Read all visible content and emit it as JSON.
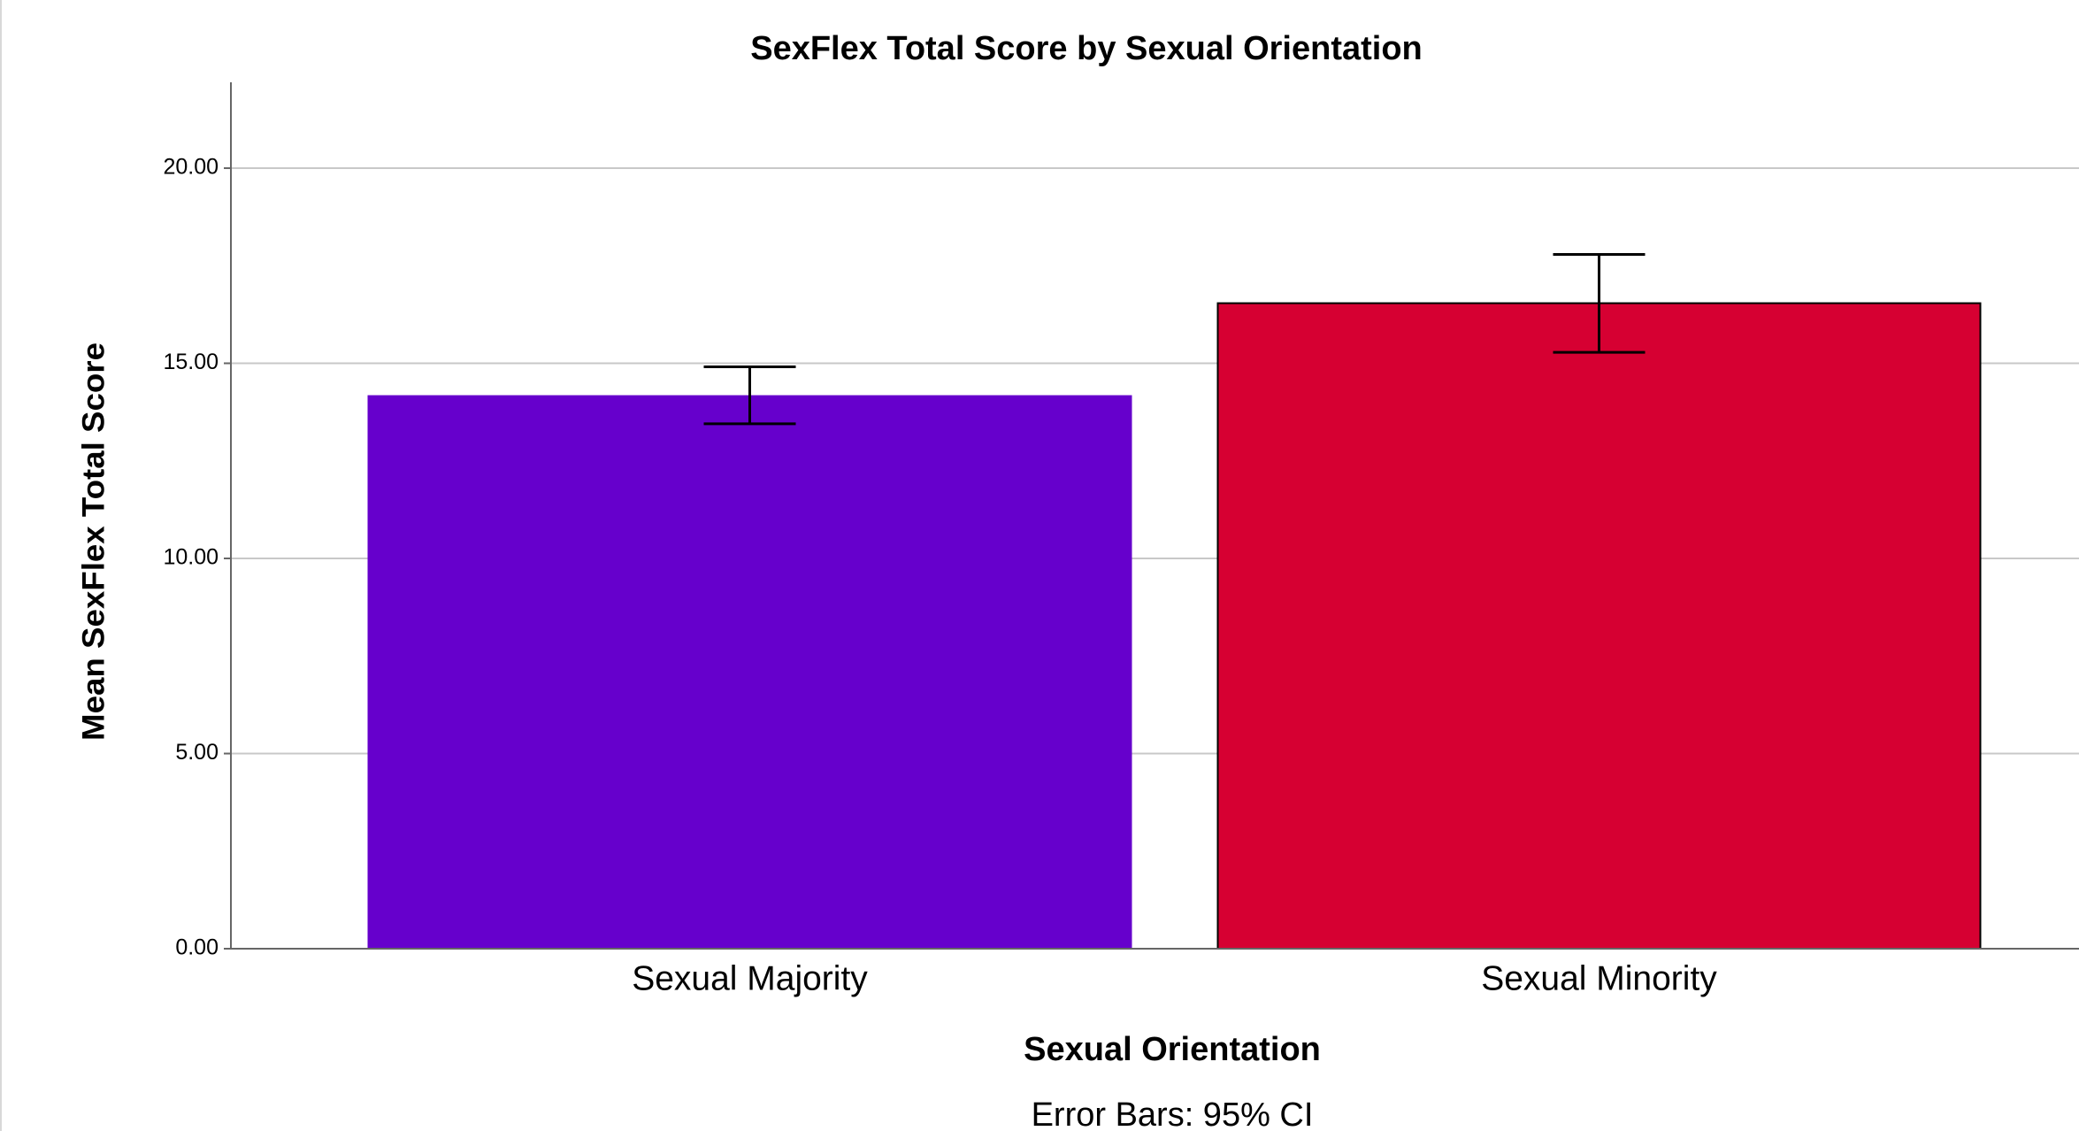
{
  "chart_data": {
    "type": "bar",
    "title": "SexFlex Total Score by Sexual Orientation",
    "x_label": "Sexual Orientation",
    "y_label": "Mean SexFlex Total Score",
    "footnote": "Error Bars: 95% CI",
    "categories": [
      "Sexual Majority",
      "Sexual Minority"
    ],
    "values": [
      14.16,
      16.54
    ],
    "ci": [
      [
        13.45,
        14.91
      ],
      [
        15.28,
        17.79
      ]
    ],
    "colors": [
      "#6600cc",
      "#d60032"
    ],
    "ylim": [
      0,
      22.2
    ],
    "yticks": [
      {
        "value": 0,
        "label": "0.00"
      },
      {
        "value": 5,
        "label": "5.00"
      },
      {
        "value": 10,
        "label": "10.00"
      },
      {
        "value": 15,
        "label": "15.00"
      },
      {
        "value": 20,
        "label": "20.00"
      }
    ],
    "grid": true
  }
}
